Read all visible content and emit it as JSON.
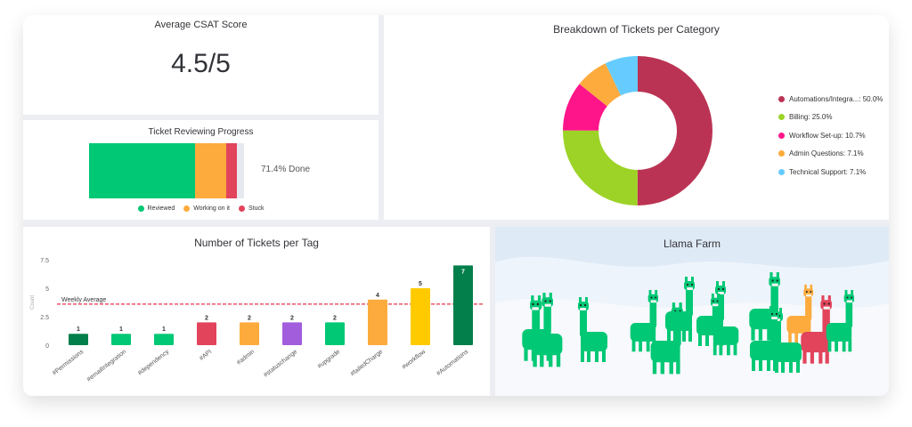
{
  "csat": {
    "title": "Average CSAT Score",
    "score": "4.5/5"
  },
  "progress": {
    "title": "Ticket Reviewing Progress",
    "done_label": "71.4% Done",
    "segments": [
      {
        "label": "Reviewed",
        "fraction": 0.714,
        "color": "#00c875"
      },
      {
        "label": "Working on it",
        "fraction": 0.214,
        "color": "#fdab3d"
      },
      {
        "label": "Stuck",
        "fraction": 0.072,
        "color": "#e2445c"
      }
    ]
  },
  "breakdown": {
    "title": "Breakdown of Tickets per Category",
    "chart_data": {
      "type": "pie",
      "donut": true,
      "slices": [
        {
          "label": "Automations/Integra...",
          "value": 50.0,
          "legend": "Automations/Integra...: 50.0%",
          "color": "#bb3354"
        },
        {
          "label": "Billing",
          "value": 25.0,
          "legend": "Billing: 25.0%",
          "color": "#9cd326"
        },
        {
          "label": "Workflow Set-up",
          "value": 10.7,
          "legend": "Workflow Set-up: 10.7%",
          "color": "#ff158a"
        },
        {
          "label": "Admin Questions",
          "value": 7.1,
          "legend": "Admin Questions: 7.1%",
          "color": "#fdab3d"
        },
        {
          "label": "Technical Support",
          "value": 7.1,
          "legend": "Technical Support: 7.1%",
          "color": "#66ccff"
        }
      ],
      "legend_position": "right"
    }
  },
  "tags": {
    "title": "Number of Tickets per Tag",
    "chart_data": {
      "type": "bar",
      "categories": [
        "#Permissions",
        "#emailIntegration",
        "#dependency",
        "#API",
        "#admin",
        "#statuschange",
        "#upgrade",
        "#failedCharge",
        "#workflow",
        "#Automations"
      ],
      "values": [
        1,
        1,
        1,
        2,
        2,
        2,
        2,
        4,
        5,
        7
      ],
      "colors": [
        "#037f4c",
        "#00c875",
        "#00c875",
        "#e2445c",
        "#fdab3d",
        "#a25ddc",
        "#00c875",
        "#fdab3d",
        "#ffcb00",
        "#037f4c"
      ],
      "value_labels": [
        "1",
        "1",
        "1",
        "2",
        "2",
        "2",
        "2",
        "4",
        "5",
        "7"
      ],
      "ylabel": "Count",
      "ylim": [
        0,
        7.5
      ],
      "yticks": [
        "0",
        "2.5",
        "5",
        "7.5"
      ],
      "reference_line": {
        "label": "Weekly Average",
        "value": 3.6,
        "color": "#e2001a"
      },
      "grid": false
    }
  },
  "llama": {
    "title": "Llama Farm",
    "colors": {
      "llama": "#00c875",
      "stuck": "#e2445c",
      "working": "#fdab3d",
      "sky": "#dfeaf7"
    }
  }
}
